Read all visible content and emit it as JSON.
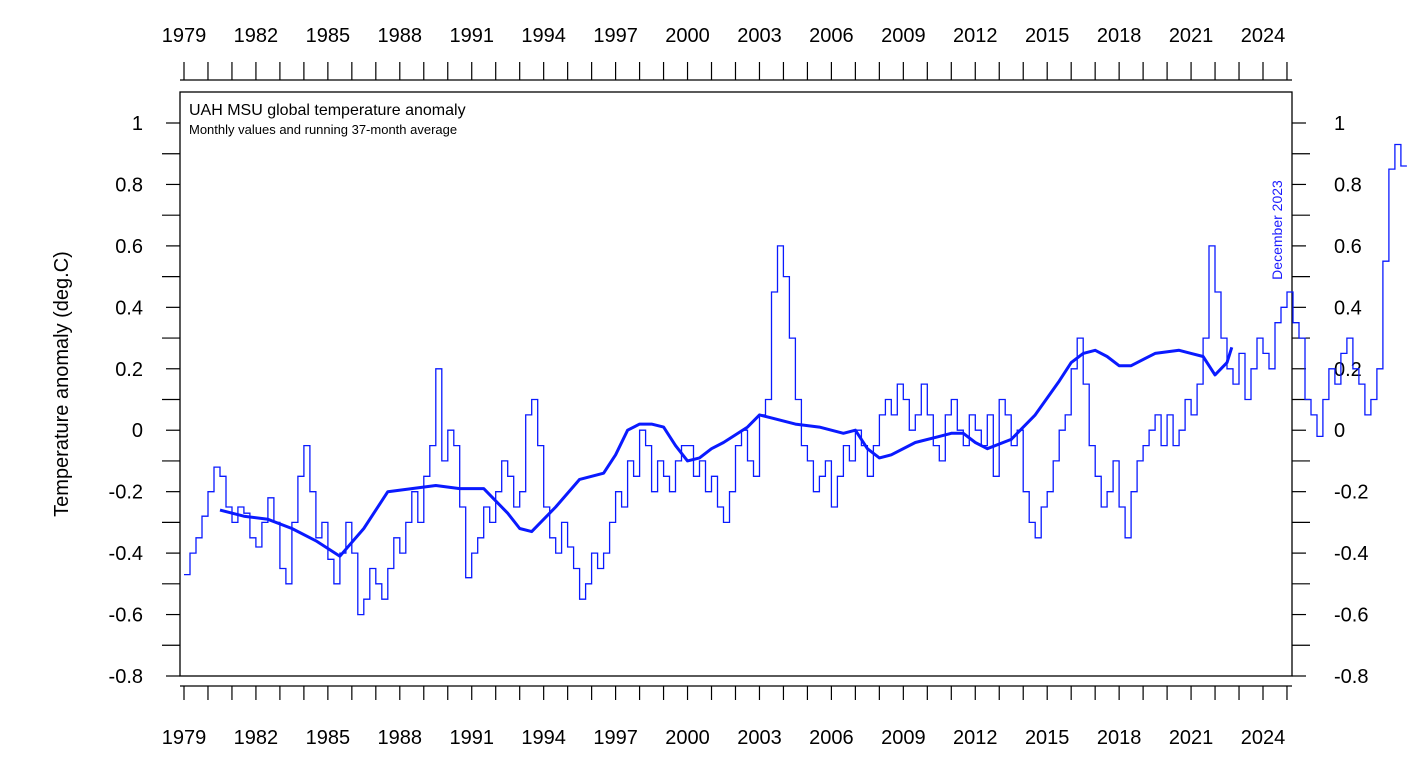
{
  "chart_data": {
    "type": "line",
    "title": "UAH MSU global temperature anomaly",
    "subtitle": "Monthly values and running 37-month average",
    "ylabel": "Temperature anomaly (deg.C)",
    "xlabel": "",
    "annotation": "December 2023",
    "xlim": [
      1978.9,
      2024.9
    ],
    "ylim": [
      -0.8,
      1.1
    ],
    "x_ticks": [
      1979,
      1982,
      1985,
      1988,
      1991,
      1994,
      1997,
      2000,
      2003,
      2006,
      2009,
      2012,
      2015,
      2018,
      2021,
      2024
    ],
    "y_ticks": [
      -0.8,
      -0.6,
      -0.4,
      -0.2,
      0,
      0.2,
      0.4,
      0.6,
      0.8,
      1
    ],
    "y_tick_labels": [
      "-0.8",
      "-0.6",
      "-0.4",
      "-0.2",
      "0",
      "0.2",
      "0.4",
      "0.6",
      "0.8",
      "1"
    ],
    "grid": false,
    "colors": {
      "series": "#0a1aff"
    },
    "series": [
      {
        "style": "step",
        "start": 1979.0,
        "step": 0.25,
        "values": [
          -0.47,
          -0.4,
          -0.35,
          -0.28,
          -0.2,
          -0.12,
          -0.15,
          -0.25,
          -0.3,
          -0.25,
          -0.27,
          -0.35,
          -0.38,
          -0.3,
          -0.22,
          -0.3,
          -0.45,
          -0.5,
          -0.3,
          -0.15,
          -0.05,
          -0.2,
          -0.35,
          -0.3,
          -0.42,
          -0.5,
          -0.4,
          -0.3,
          -0.4,
          -0.6,
          -0.55,
          -0.45,
          -0.5,
          -0.55,
          -0.45,
          -0.35,
          -0.4,
          -0.3,
          -0.2,
          -0.3,
          -0.15,
          -0.05,
          0.2,
          -0.1,
          0.0,
          -0.05,
          -0.25,
          -0.48,
          -0.4,
          -0.35,
          -0.25,
          -0.3,
          -0.2,
          -0.1,
          -0.15,
          -0.25,
          -0.2,
          0.05,
          0.1,
          -0.05,
          -0.25,
          -0.35,
          -0.4,
          -0.3,
          -0.38,
          -0.45,
          -0.55,
          -0.5,
          -0.4,
          -0.45,
          -0.4,
          -0.3,
          -0.2,
          -0.25,
          -0.1,
          -0.15,
          0.0,
          -0.05,
          -0.2,
          -0.1,
          -0.15,
          -0.2,
          -0.1,
          -0.05,
          -0.05,
          -0.15,
          -0.1,
          -0.2,
          -0.15,
          -0.25,
          -0.3,
          -0.2,
          -0.05,
          0.0,
          -0.1,
          -0.15,
          0.05,
          0.1,
          0.45,
          0.6,
          0.5,
          0.3,
          0.1,
          -0.05,
          -0.1,
          -0.2,
          -0.15,
          -0.1,
          -0.25,
          -0.15,
          -0.05,
          -0.1,
          0.0,
          -0.05,
          -0.15,
          -0.05,
          0.05,
          0.1,
          0.05,
          0.15,
          0.1,
          0.0,
          0.05,
          0.15,
          0.05,
          -0.05,
          -0.1,
          0.05,
          0.1,
          0.0,
          -0.05,
          0.05,
          0.0,
          -0.05,
          0.05,
          -0.15,
          0.1,
          0.05,
          -0.05,
          0.0,
          -0.2,
          -0.3,
          -0.35,
          -0.25,
          -0.2,
          -0.1,
          0.0,
          0.05,
          0.2,
          0.3,
          0.15,
          -0.05,
          -0.15,
          -0.25,
          -0.2,
          -0.1,
          -0.25,
          -0.35,
          -0.2,
          -0.1,
          -0.05,
          0.0,
          0.05,
          -0.05,
          0.05,
          -0.05,
          0.0,
          0.1,
          0.05,
          0.15,
          0.3,
          0.6,
          0.45,
          0.3,
          0.2,
          0.15,
          0.25,
          0.1,
          0.2,
          0.3,
          0.25,
          0.2,
          0.35,
          0.4,
          0.45,
          0.35,
          0.3,
          0.1,
          0.05,
          -0.02,
          0.1,
          0.2,
          0.15,
          0.25,
          0.3,
          0.2,
          0.15,
          0.05,
          0.1,
          0.2,
          0.55,
          0.85,
          0.93,
          0.86
        ]
      },
      {
        "style": "line",
        "name_hidden": true,
        "x": [
          1980.5,
          1981.5,
          1982.5,
          1983.5,
          1984.5,
          1985.5,
          1986.5,
          1987.5,
          1988.5,
          1989.5,
          1990.5,
          1991.5,
          1992.5,
          1993.0,
          1993.5,
          1994.5,
          1995.5,
          1996.5,
          1997.0,
          1997.5,
          1998.0,
          1998.5,
          1999.0,
          1999.5,
          2000.0,
          2000.5,
          2001.0,
          2001.5,
          2002.5,
          2003.0,
          2003.5,
          2004.5,
          2005.5,
          2006.5,
          2007.0,
          2007.5,
          2008.0,
          2008.5,
          2009.5,
          2010.5,
          2011.0,
          2011.5,
          2012.0,
          2012.5,
          2013.5,
          2014.5,
          2015.5,
          2016.0,
          2016.5,
          2017.0,
          2017.5,
          2018.0,
          2018.5,
          2019.5,
          2020.5,
          2021.0,
          2021.5,
          2022.0,
          2022.5,
          2022.7
        ],
        "values": [
          -0.26,
          -0.28,
          -0.29,
          -0.32,
          -0.36,
          -0.41,
          -0.32,
          -0.2,
          -0.19,
          -0.18,
          -0.19,
          -0.19,
          -0.27,
          -0.32,
          -0.33,
          -0.25,
          -0.16,
          -0.14,
          -0.08,
          0.0,
          0.02,
          0.02,
          0.01,
          -0.05,
          -0.1,
          -0.09,
          -0.06,
          -0.04,
          0.01,
          0.05,
          0.04,
          0.02,
          0.01,
          -0.01,
          0.0,
          -0.06,
          -0.09,
          -0.08,
          -0.04,
          -0.02,
          -0.01,
          -0.01,
          -0.04,
          -0.06,
          -0.03,
          0.05,
          0.16,
          0.22,
          0.25,
          0.26,
          0.24,
          0.21,
          0.21,
          0.25,
          0.26,
          0.25,
          0.24,
          0.18,
          0.22,
          0.27
        ]
      }
    ]
  }
}
